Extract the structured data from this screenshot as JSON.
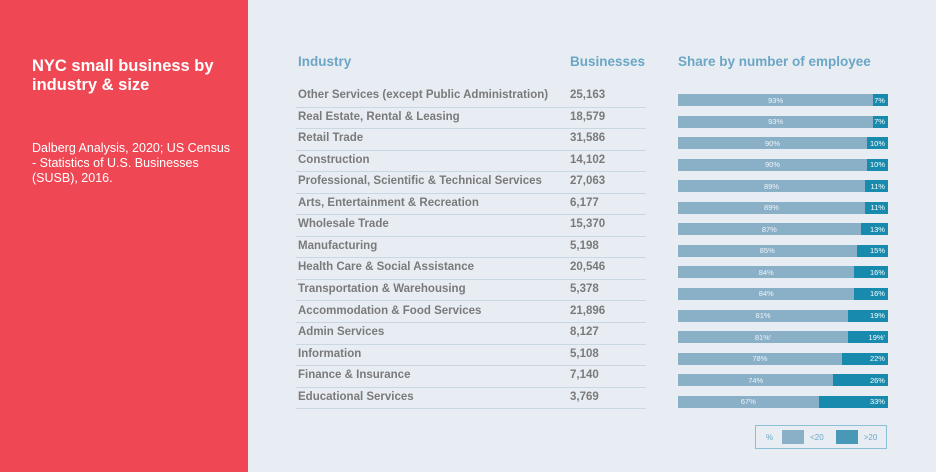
{
  "sidebar": {
    "title": "NYC small business by industry & size",
    "source": "Dalberg Analysis, 2020; US Census - Statistics of U.S. Businesses (SUSB), 2016."
  },
  "colors": {
    "sidebar_bg": "#ef4854",
    "header_text": "#6ba6c6",
    "under_20": "#8ab0c8",
    "over_20": "#178aad"
  },
  "chart_data": {
    "type": "table",
    "title": "NYC small business by industry & size",
    "columns": [
      "Industry",
      "Businesses",
      "Share by number of employee"
    ],
    "legend": {
      "prefix": "%",
      "entries": [
        "<20",
        ">20"
      ],
      "position": "bottom-right"
    },
    "rows": [
      {
        "industry": "Other Services (except Public Administration)",
        "businesses": "25,163",
        "lt20": 93,
        "gt20": 7,
        "lt20_label": "93%",
        "gt20_label": "7%"
      },
      {
        "industry": "Real Estate, Rental & Leasing",
        "businesses": "18,579",
        "lt20": 93,
        "gt20": 7,
        "lt20_label": "93%",
        "gt20_label": "7%"
      },
      {
        "industry": "Retail Trade",
        "businesses": "31,586",
        "lt20": 90,
        "gt20": 10,
        "lt20_label": "90%",
        "gt20_label": "10%"
      },
      {
        "industry": "Construction",
        "businesses": "14,102",
        "lt20": 90,
        "gt20": 10,
        "lt20_label": "90%",
        "gt20_label": "10%"
      },
      {
        "industry": "Professional, Scientific & Technical Services",
        "businesses": "27,063",
        "lt20": 89,
        "gt20": 11,
        "lt20_label": "89%",
        "gt20_label": "11%"
      },
      {
        "industry": "Arts, Entertainment & Recreation",
        "businesses": "6,177",
        "lt20": 89,
        "gt20": 11,
        "lt20_label": "89%",
        "gt20_label": "11%"
      },
      {
        "industry": "Wholesale Trade",
        "businesses": "15,370",
        "lt20": 87,
        "gt20": 13,
        "lt20_label": "87%",
        "gt20_label": "13%"
      },
      {
        "industry": "Manufacturing",
        "businesses": "5,198",
        "lt20": 85,
        "gt20": 15,
        "lt20_label": "85%",
        "gt20_label": "15%"
      },
      {
        "industry": "Health Care & Social Assistance",
        "businesses": "20,546",
        "lt20": 84,
        "gt20": 16,
        "lt20_label": "84%",
        "gt20_label": "16%"
      },
      {
        "industry": "Transportation & Warehousing",
        "businesses": "5,378",
        "lt20": 84,
        "gt20": 16,
        "lt20_label": "84%",
        "gt20_label": "16%"
      },
      {
        "industry": "Accommodation & Food Services",
        "businesses": "21,896",
        "lt20": 81,
        "gt20": 19,
        "lt20_label": "81%",
        "gt20_label": "19%"
      },
      {
        "industry": "Admin Services",
        "businesses": "8,127",
        "lt20": 81,
        "gt20": 19,
        "lt20_label": "81%'",
        "gt20_label": "19%'"
      },
      {
        "industry": "Information",
        "businesses": "5,108",
        "lt20": 78,
        "gt20": 22,
        "lt20_label": "78%",
        "gt20_label": "22%"
      },
      {
        "industry": "Finance & Insurance",
        "businesses": "7,140",
        "lt20": 74,
        "gt20": 26,
        "lt20_label": "74%",
        "gt20_label": "26%"
      },
      {
        "industry": "Educational Services",
        "businesses": "3,769",
        "lt20": 67,
        "gt20": 33,
        "lt20_label": "67%",
        "gt20_label": "33%"
      }
    ]
  }
}
